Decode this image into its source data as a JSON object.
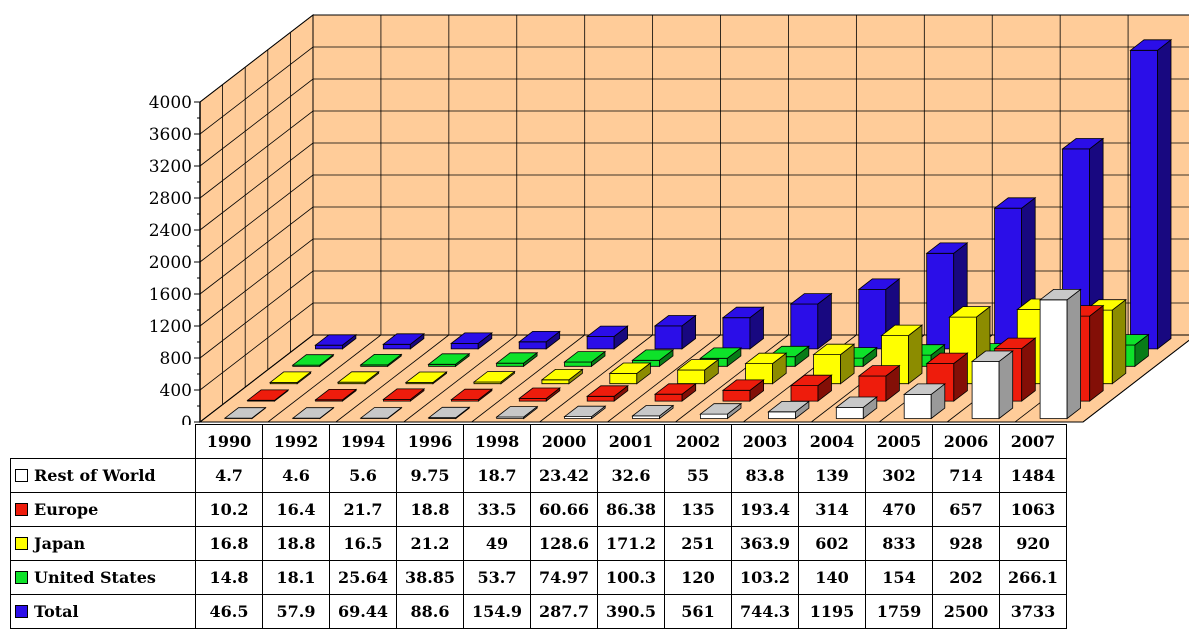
{
  "chart_data": {
    "type": "bar",
    "categories": [
      "1990",
      "1992",
      "1994",
      "1996",
      "1998",
      "2000",
      "2001",
      "2002",
      "2003",
      "2004",
      "2005",
      "2006",
      "2007"
    ],
    "series": [
      {
        "name": "Rest of World",
        "color": "#ffffff",
        "values": [
          "4.7",
          "4.6",
          "5.6",
          "9.75",
          "18.7",
          "23.42",
          "32.6",
          "55",
          "83.8",
          "139",
          "302",
          "714",
          "1484"
        ]
      },
      {
        "name": "Europe",
        "color": "#ee1c0c",
        "values": [
          "10.2",
          "16.4",
          "21.7",
          "18.8",
          "33.5",
          "60.66",
          "86.38",
          "135",
          "193.4",
          "314",
          "470",
          "657",
          "1063"
        ]
      },
      {
        "name": "Japan",
        "color": "#ffff00",
        "values": [
          "16.8",
          "18.8",
          "16.5",
          "21.2",
          "49",
          "128.6",
          "171.2",
          "251",
          "363.9",
          "602",
          "833",
          "928",
          "920"
        ]
      },
      {
        "name": "United States",
        "color": "#0ee22a",
        "values": [
          "14.8",
          "18.1",
          "25.64",
          "38.85",
          "53.7",
          "74.97",
          "100.3",
          "120",
          "103.2",
          "140",
          "154",
          "202",
          "266.1"
        ]
      },
      {
        "name": "Total",
        "color": "#2b0ee8",
        "values": [
          "46.5",
          "57.9",
          "69.44",
          "88.6",
          "154.9",
          "287.7",
          "390.5",
          "561",
          "744.3",
          "1195",
          "1759",
          "2500",
          "3733"
        ]
      }
    ],
    "ylim": [
      0,
      4000
    ],
    "yticks": [
      "0",
      "400",
      "800",
      "1200",
      "1600",
      "2000",
      "2400",
      "2800",
      "3200",
      "3600",
      "4000"
    ],
    "grid": true,
    "wall_color": "#ffcc99",
    "legend": "data table below chart"
  }
}
